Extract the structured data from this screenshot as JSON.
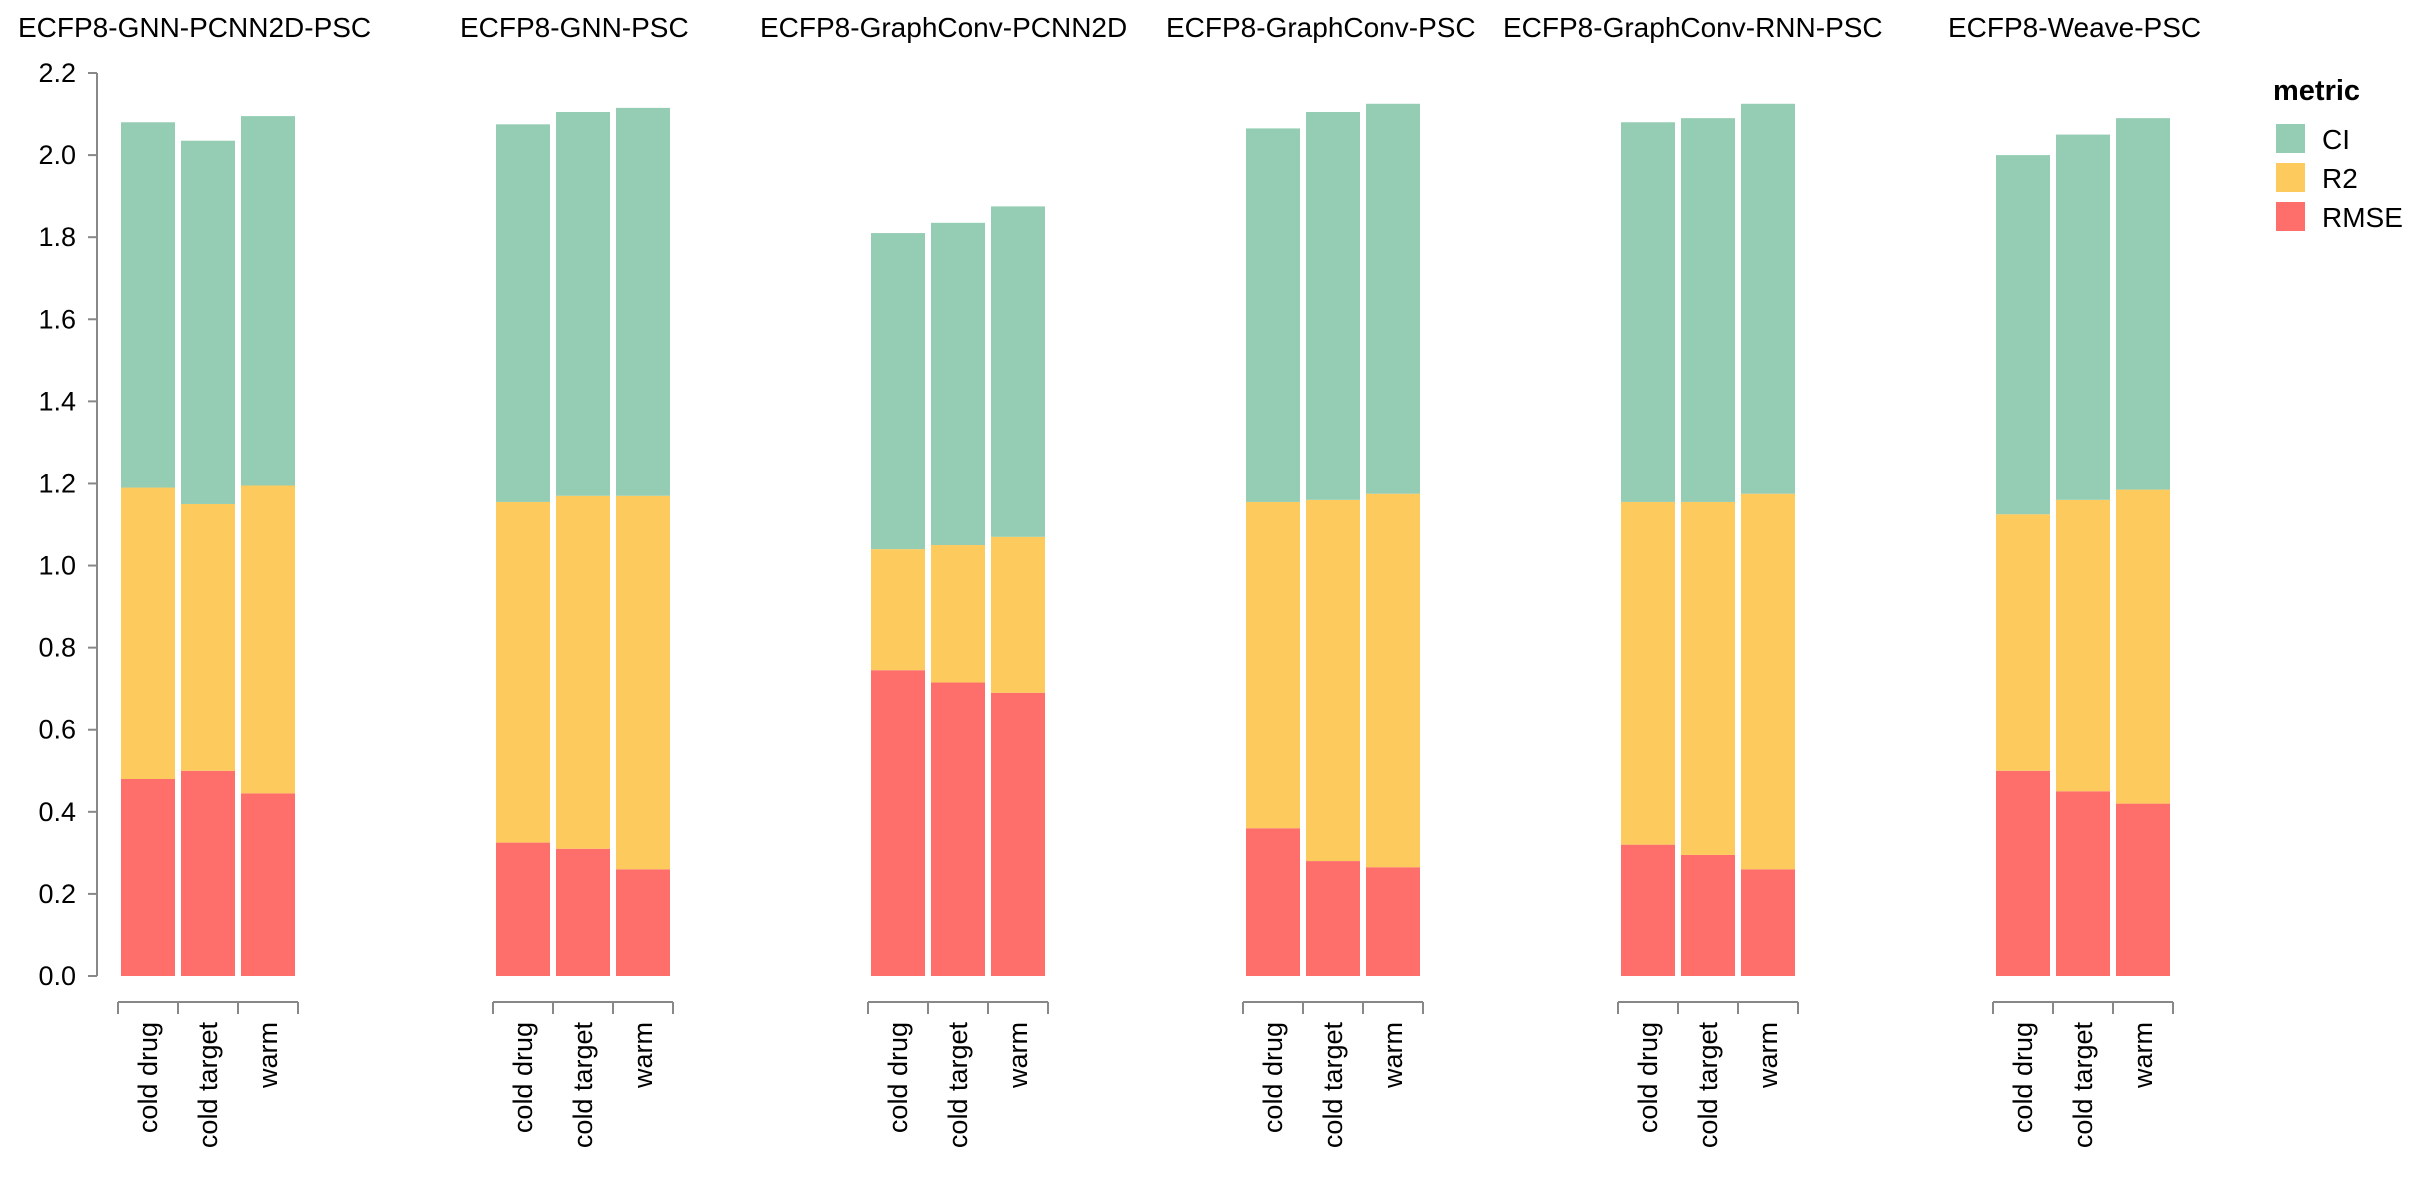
{
  "chart_data": {
    "type": "bar",
    "stacked": true,
    "facets": [
      "ECFP8-GNN-PCNN2D-PSC",
      "ECFP8-GNN-PSC",
      "ECFP8-GraphConv-PCNN2D",
      "ECFP8-GraphConv-PSC",
      "ECFP8-GraphConv-RNN-PSC",
      "ECFP8-Weave-PSC"
    ],
    "categories": [
      "cold drug",
      "cold target",
      "warm"
    ],
    "yticks": [
      "0.0",
      "0.2",
      "0.4",
      "0.6",
      "0.8",
      "1.0",
      "1.2",
      "1.4",
      "1.6",
      "1.8",
      "2.0",
      "2.2"
    ],
    "ylim": [
      0,
      2.2
    ],
    "legend": {
      "title": "metric",
      "position": "top-right",
      "items": [
        {
          "name": "CI",
          "color": "#95cdb4"
        },
        {
          "name": "R2",
          "color": "#fdca5e"
        },
        {
          "name": "RMSE",
          "color": "#fe6e6a"
        }
      ]
    },
    "series": [
      {
        "name": "RMSE",
        "color": "#fe6e6a",
        "values": [
          [
            0.48,
            0.5,
            0.445
          ],
          [
            0.325,
            0.31,
            0.26
          ],
          [
            0.745,
            0.715,
            0.69
          ],
          [
            0.36,
            0.28,
            0.265
          ],
          [
            0.32,
            0.295,
            0.26
          ],
          [
            0.5,
            0.45,
            0.42
          ]
        ]
      },
      {
        "name": "R2",
        "color": "#fdca5e",
        "values": [
          [
            0.71,
            0.65,
            0.75
          ],
          [
            0.83,
            0.86,
            0.91
          ],
          [
            0.295,
            0.335,
            0.38
          ],
          [
            0.795,
            0.88,
            0.91
          ],
          [
            0.835,
            0.86,
            0.915
          ],
          [
            0.625,
            0.71,
            0.765
          ]
        ]
      },
      {
        "name": "CI",
        "color": "#95cdb4",
        "values": [
          [
            0.89,
            0.885,
            0.9
          ],
          [
            0.92,
            0.935,
            0.945
          ],
          [
            0.77,
            0.785,
            0.805
          ],
          [
            0.91,
            0.945,
            0.95
          ],
          [
            0.925,
            0.935,
            0.95
          ],
          [
            0.875,
            0.89,
            0.905
          ]
        ]
      }
    ],
    "xlabel": "",
    "ylabel": "",
    "grid": false
  }
}
